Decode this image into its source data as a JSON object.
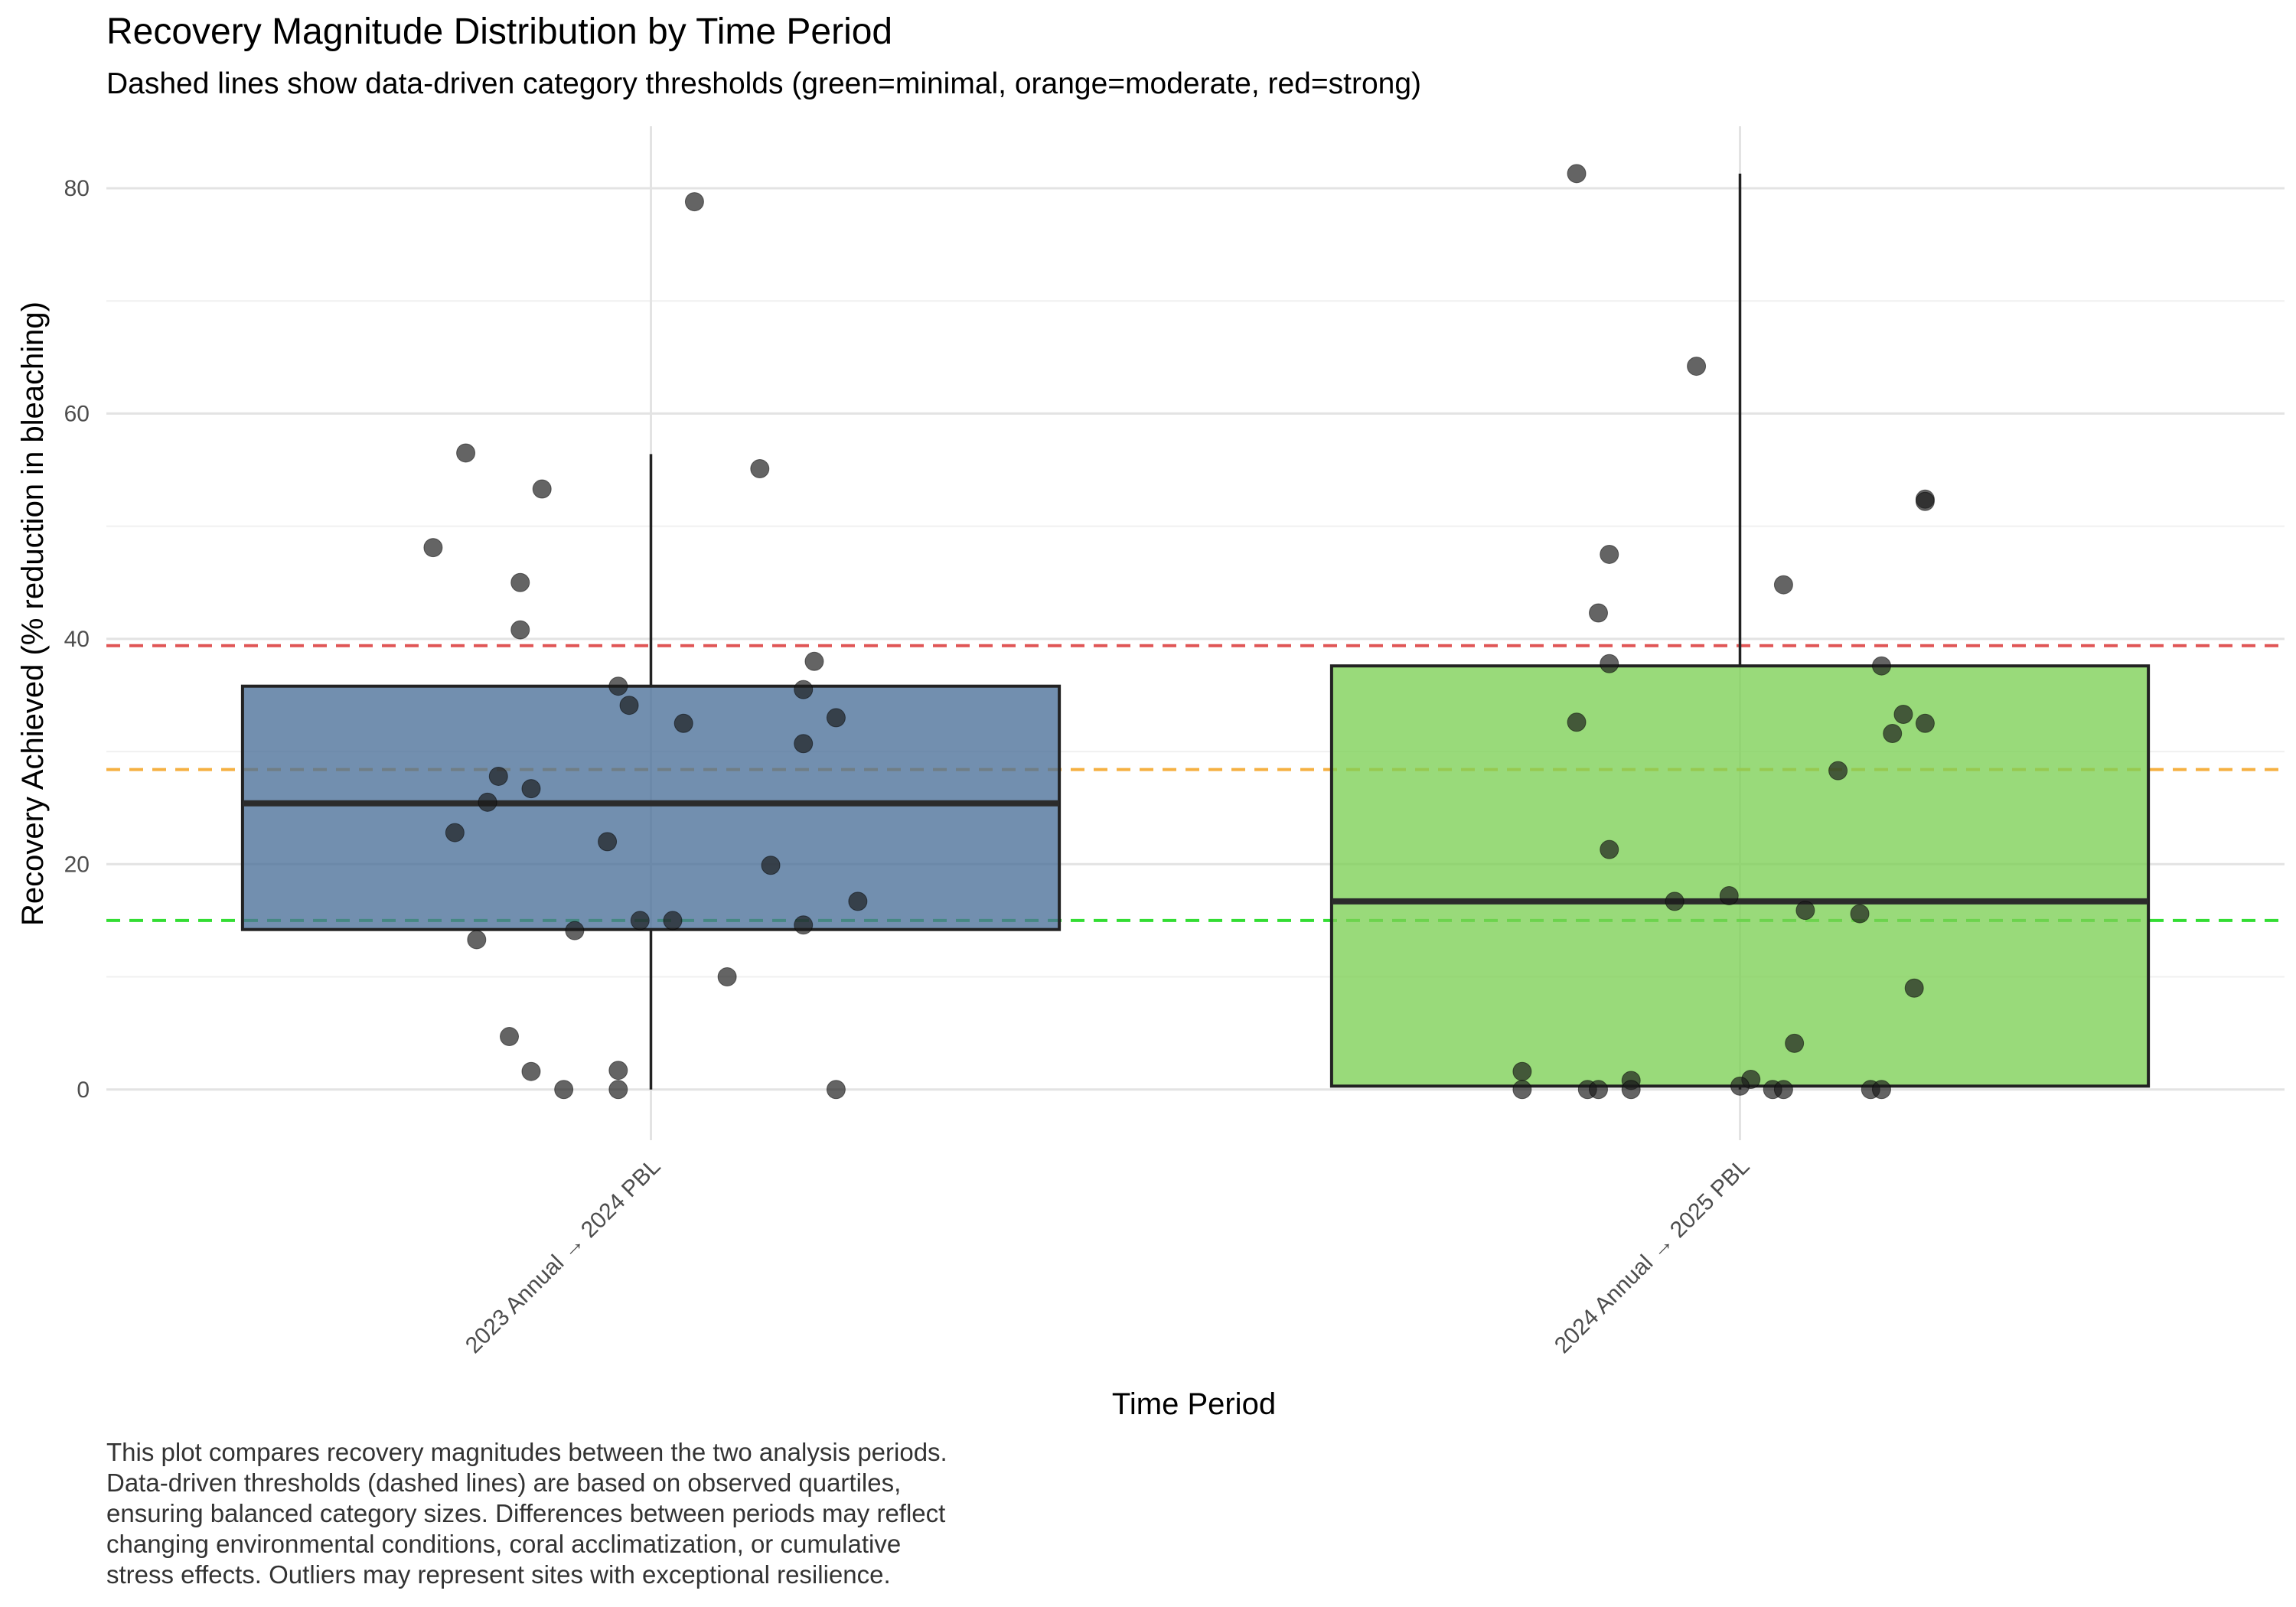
{
  "chart_data": {
    "type": "box",
    "title": "Recovery Magnitude Distribution by Time Period",
    "subtitle": "Dashed lines show data-driven category thresholds (green=minimal, orange=moderate, red=strong)",
    "xlabel": "Time Period",
    "ylabel": "Recovery Achieved (% reduction in bleaching)",
    "ylim": [
      -4.5,
      85.5
    ],
    "yticks": [
      0,
      20,
      40,
      60,
      80
    ],
    "grid": true,
    "categories": [
      "2023 Annual → 2024 PBL",
      "2024 Annual → 2025 PBL"
    ],
    "thresholds": [
      {
        "value": 15.0,
        "color": "#33dd33"
      },
      {
        "value": 28.4,
        "color": "#f5b041"
      },
      {
        "value": 39.4,
        "color": "#e05555"
      }
    ],
    "boxes": [
      {
        "category": "2023 Annual → 2024 PBL",
        "fill": "#4a6f98",
        "min": 0,
        "q1": 14.2,
        "median": 25.4,
        "q3": 35.8,
        "max": 56.4
      },
      {
        "category": "2024 Annual → 2025 PBL",
        "fill": "#7ccf55",
        "min": 0,
        "q1": 0.3,
        "median": 16.7,
        "q3": 37.6,
        "max": 81.3
      }
    ],
    "points": [
      {
        "category": 0,
        "jitter": 0.04,
        "y": 78.8
      },
      {
        "category": 0,
        "jitter": -0.17,
        "y": 56.5
      },
      {
        "category": 0,
        "jitter": 0.1,
        "y": 55.1
      },
      {
        "category": 0,
        "jitter": -0.1,
        "y": 53.3
      },
      {
        "category": 0,
        "jitter": -0.2,
        "y": 48.1
      },
      {
        "category": 0,
        "jitter": -0.12,
        "y": 45.0
      },
      {
        "category": 0,
        "jitter": -0.12,
        "y": 40.8
      },
      {
        "category": 0,
        "jitter": 0.15,
        "y": 38.0
      },
      {
        "category": 0,
        "jitter": -0.03,
        "y": 35.8
      },
      {
        "category": 0,
        "jitter": 0.14,
        "y": 35.5
      },
      {
        "category": 0,
        "jitter": -0.02,
        "y": 34.1
      },
      {
        "category": 0,
        "jitter": 0.17,
        "y": 33.0
      },
      {
        "category": 0,
        "jitter": 0.03,
        "y": 32.5
      },
      {
        "category": 0,
        "jitter": 0.14,
        "y": 30.7
      },
      {
        "category": 0,
        "jitter": -0.14,
        "y": 27.8
      },
      {
        "category": 0,
        "jitter": -0.11,
        "y": 26.7
      },
      {
        "category": 0,
        "jitter": -0.15,
        "y": 25.5
      },
      {
        "category": 0,
        "jitter": -0.18,
        "y": 22.8
      },
      {
        "category": 0,
        "jitter": -0.04,
        "y": 22.0
      },
      {
        "category": 0,
        "jitter": 0.11,
        "y": 19.9
      },
      {
        "category": 0,
        "jitter": 0.19,
        "y": 16.7
      },
      {
        "category": 0,
        "jitter": -0.01,
        "y": 15.0
      },
      {
        "category": 0,
        "jitter": 0.02,
        "y": 15.0
      },
      {
        "category": 0,
        "jitter": 0.14,
        "y": 14.6
      },
      {
        "category": 0,
        "jitter": -0.07,
        "y": 14.1
      },
      {
        "category": 0,
        "jitter": -0.16,
        "y": 13.3
      },
      {
        "category": 0,
        "jitter": 0.07,
        "y": 10.0
      },
      {
        "category": 0,
        "jitter": -0.13,
        "y": 4.7
      },
      {
        "category": 0,
        "jitter": -0.11,
        "y": 1.6
      },
      {
        "category": 0,
        "jitter": -0.03,
        "y": 1.7
      },
      {
        "category": 0,
        "jitter": -0.08,
        "y": 0.0
      },
      {
        "category": 0,
        "jitter": -0.03,
        "y": 0.0
      },
      {
        "category": 0,
        "jitter": 0.17,
        "y": 0.0
      },
      {
        "category": 1,
        "jitter": -0.15,
        "y": 81.3
      },
      {
        "category": 1,
        "jitter": -0.04,
        "y": 64.2
      },
      {
        "category": 1,
        "jitter": 0.17,
        "y": 52.4
      },
      {
        "category": 1,
        "jitter": 0.17,
        "y": 52.2
      },
      {
        "category": 1,
        "jitter": -0.12,
        "y": 47.5
      },
      {
        "category": 1,
        "jitter": 0.04,
        "y": 44.8
      },
      {
        "category": 1,
        "jitter": -0.13,
        "y": 42.3
      },
      {
        "category": 1,
        "jitter": -0.12,
        "y": 37.8
      },
      {
        "category": 1,
        "jitter": 0.13,
        "y": 37.6
      },
      {
        "category": 1,
        "jitter": 0.15,
        "y": 33.3
      },
      {
        "category": 1,
        "jitter": -0.15,
        "y": 32.6
      },
      {
        "category": 1,
        "jitter": 0.17,
        "y": 32.5
      },
      {
        "category": 1,
        "jitter": 0.14,
        "y": 31.6
      },
      {
        "category": 1,
        "jitter": 0.09,
        "y": 28.3
      },
      {
        "category": 1,
        "jitter": -0.12,
        "y": 21.3
      },
      {
        "category": 1,
        "jitter": -0.01,
        "y": 17.2
      },
      {
        "category": 1,
        "jitter": -0.06,
        "y": 16.7
      },
      {
        "category": 1,
        "jitter": 0.06,
        "y": 15.9
      },
      {
        "category": 1,
        "jitter": 0.11,
        "y": 15.6
      },
      {
        "category": 1,
        "jitter": 0.16,
        "y": 9.0
      },
      {
        "category": 1,
        "jitter": 0.05,
        "y": 4.1
      },
      {
        "category": 1,
        "jitter": -0.2,
        "y": 1.6
      },
      {
        "category": 1,
        "jitter": -0.1,
        "y": 0.8
      },
      {
        "category": 1,
        "jitter": 0.01,
        "y": 0.9
      },
      {
        "category": 1,
        "jitter": 0.0,
        "y": 0.3
      },
      {
        "category": 1,
        "jitter": -0.2,
        "y": 0.0
      },
      {
        "category": 1,
        "jitter": -0.14,
        "y": 0.0
      },
      {
        "category": 1,
        "jitter": -0.13,
        "y": 0.0
      },
      {
        "category": 1,
        "jitter": -0.1,
        "y": 0.0
      },
      {
        "category": 1,
        "jitter": 0.03,
        "y": 0.0
      },
      {
        "category": 1,
        "jitter": 0.04,
        "y": 0.0
      },
      {
        "category": 1,
        "jitter": 0.12,
        "y": 0.0
      },
      {
        "category": 1,
        "jitter": 0.13,
        "y": 0.0
      }
    ],
    "caption": "This plot compares recovery magnitudes between the two analysis periods.\nData-driven thresholds (dashed lines) are based on observed quartiles,\nensuring balanced category sizes. Differences between periods may reflect\nchanging environmental conditions, coral acclimatization, or cumulative\nstress effects. Outliers may represent sites with exceptional resilience."
  }
}
